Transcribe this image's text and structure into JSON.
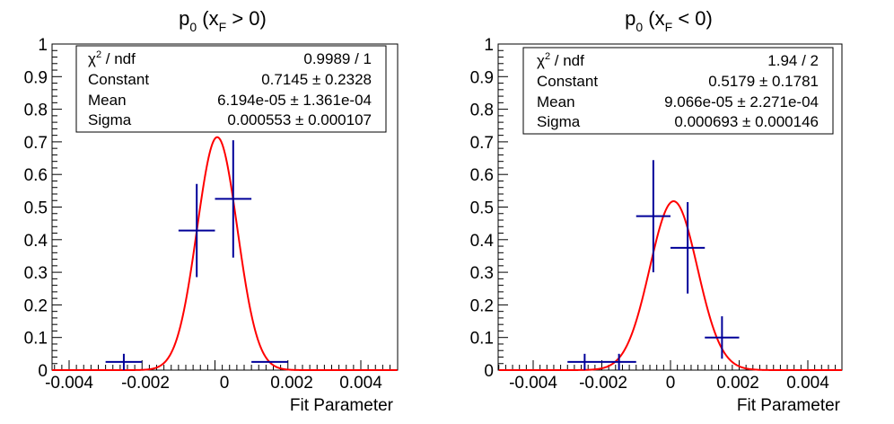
{
  "colors": {
    "fit": "#ff0000",
    "data": "#000099",
    "axis": "#000000"
  },
  "chart_data": [
    {
      "type": "scatter",
      "title_main": "p",
      "title_sub": "0",
      "title_open": " (x",
      "title_sub2": "F",
      "title_rest": " > 0)",
      "xlabel": "Fit Parameter",
      "ylabel": "",
      "xlim": [
        -0.005,
        0.005
      ],
      "ylim": [
        0,
        1
      ],
      "grid": false,
      "x_ticks": [
        -0.004,
        -0.002,
        0,
        0.002,
        0.004
      ],
      "x_tick_labels": [
        "-0.004",
        "-0.002",
        "0",
        "0.002",
        "0.004"
      ],
      "y_ticks": [
        0,
        0.1,
        0.2,
        0.3,
        0.4,
        0.5,
        0.6,
        0.7,
        0.8,
        0.9,
        1
      ],
      "y_tick_labels": [
        "0",
        "0.1",
        "0.2",
        "0.3",
        "0.4",
        "0.5",
        "0.6",
        "0.7",
        "0.8",
        "0.9",
        "1"
      ],
      "points": [
        {
          "x": -0.0025,
          "y": 0.025,
          "xerr": 0.0005,
          "yerr": 0.025
        },
        {
          "x": -0.0005,
          "y": 0.428,
          "xerr": 0.0005,
          "yerr": 0.143
        },
        {
          "x": 0.0005,
          "y": 0.525,
          "xerr": 0.0005,
          "yerr": 0.18
        },
        {
          "x": 0.0015,
          "y": 0.025,
          "xerr": 0.0005,
          "yerr": 0.0
        }
      ],
      "fit": {
        "constant": 0.7145,
        "mean": 6.194e-05,
        "sigma": 0.000553
      },
      "stats": {
        "chi_label": "χ",
        "chi_sup": "2",
        "chi_rest": " / ndf",
        "chi_value": "0.9989 / 1",
        "rows": [
          {
            "label": "Constant",
            "value": "0.7145 ± 0.2328"
          },
          {
            "label": "Mean",
            "value": "6.194e-05 ± 1.361e-04"
          },
          {
            "label": "Sigma",
            "value": "0.000553 ± 0.000107"
          }
        ]
      }
    },
    {
      "type": "scatter",
      "title_main": "p",
      "title_sub": "0",
      "title_open": " (x",
      "title_sub2": "F",
      "title_rest": " < 0)",
      "xlabel": "Fit Parameter",
      "ylabel": "",
      "xlim": [
        -0.005,
        0.005
      ],
      "ylim": [
        0,
        1
      ],
      "grid": false,
      "x_ticks": [
        -0.004,
        -0.002,
        0,
        0.002,
        0.004
      ],
      "x_tick_labels": [
        "-0.004",
        "-0.002",
        "0",
        "0.002",
        "0.004"
      ],
      "y_ticks": [
        0,
        0.1,
        0.2,
        0.3,
        0.4,
        0.5,
        0.6,
        0.7,
        0.8,
        0.9,
        1
      ],
      "y_tick_labels": [
        "0",
        "0.1",
        "0.2",
        "0.3",
        "0.4",
        "0.5",
        "0.6",
        "0.7",
        "0.8",
        "0.9",
        "1"
      ],
      "points": [
        {
          "x": -0.0025,
          "y": 0.025,
          "xerr": 0.0005,
          "yerr": 0.025
        },
        {
          "x": -0.0015,
          "y": 0.025,
          "xerr": 0.0005,
          "yerr": 0.025
        },
        {
          "x": -0.0005,
          "y": 0.472,
          "xerr": 0.0005,
          "yerr": 0.172
        },
        {
          "x": 0.0005,
          "y": 0.375,
          "xerr": 0.0005,
          "yerr": 0.14
        },
        {
          "x": 0.0015,
          "y": 0.1,
          "xerr": 0.0005,
          "yerr": 0.065
        }
      ],
      "fit": {
        "constant": 0.5179,
        "mean": 9.066e-05,
        "sigma": 0.000693
      },
      "stats": {
        "chi_label": "χ",
        "chi_sup": "2",
        "chi_rest": " / ndf",
        "chi_value": "1.94 / 2",
        "rows": [
          {
            "label": "Constant",
            "value": "0.5179 ± 0.1781"
          },
          {
            "label": "Mean",
            "value": "9.066e-05 ± 2.271e-04"
          },
          {
            "label": "Sigma",
            "value": "0.000693 ± 0.000146"
          }
        ]
      }
    }
  ]
}
